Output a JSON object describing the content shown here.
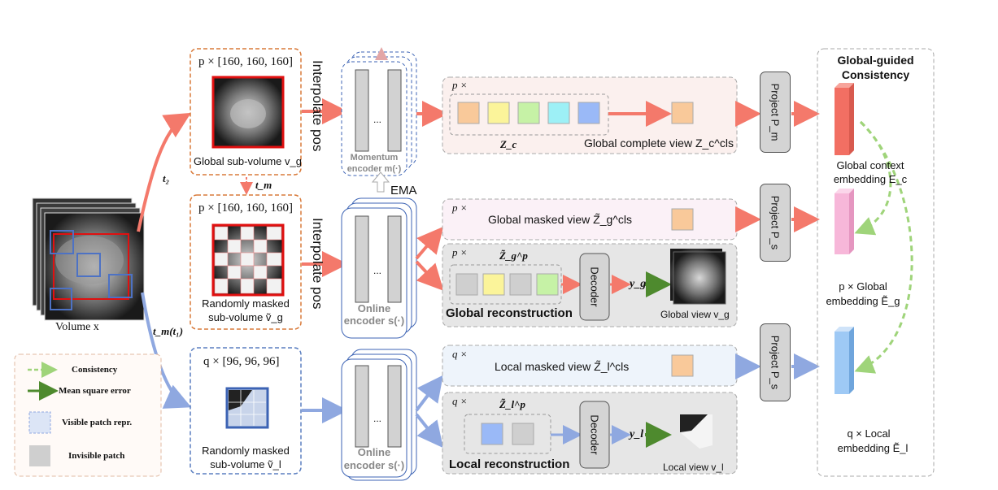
{
  "volume": {
    "label": "Volume x"
  },
  "branches": {
    "t2": "t₂",
    "tm": "t_m",
    "tm_t1": "t_m(t₁)"
  },
  "global_subvolume": {
    "size": "p × [160, 160, 160]",
    "caption": "Global sub-volume v_g"
  },
  "masked_global_subvolume": {
    "size": "p × [160, 160, 160]",
    "caption_line1": "Randomly masked",
    "caption_line2": "sub-volume ṽ_g"
  },
  "local_subvolume": {
    "size": "q × [96, 96, 96]",
    "caption_line1": "Randomly masked",
    "caption_line2": "sub-volume ṽ_l"
  },
  "interpolate": {
    "top": "Interpolate pos",
    "mid": "Interpolate pos"
  },
  "encoders": {
    "momentum_line1": "Momentum",
    "momentum_line2": "encoder m(·)",
    "online_line1": "Online",
    "online_line2": "encoder s(·)",
    "online2_line1": "Online",
    "online2_line2": "encoder s(·)",
    "ellipsis": "...",
    "ema": "EMA"
  },
  "global_complete": {
    "prefix": "p ×",
    "token_label": "Z_c",
    "view_label": "Global complete view Z_c^cls"
  },
  "global_masked": {
    "prefix": "p ×",
    "view_label": "Global masked view Z̃_g^cls"
  },
  "global_recon": {
    "prefix": "p ×",
    "token_label": "Z̃_g^p",
    "decoder": "Decoder",
    "output": "y_g",
    "title": "Global reconstruction",
    "view": "Global view v_g"
  },
  "local_masked": {
    "prefix": "q ×",
    "view_label": "Local masked view Z̃_l^cls"
  },
  "local_recon": {
    "prefix": "q ×",
    "token_label": "Z̃_l^p",
    "decoder": "Decoder",
    "output": "y_l",
    "title": "Local reconstruction",
    "view": "Local view v_l"
  },
  "projections": {
    "pm": "Project P_m",
    "ps1": "Project P_s",
    "ps2": "Project P_s"
  },
  "consistency": {
    "title_line1": "Global-guided",
    "title_line2": "Consistency",
    "global_context_line1": "Global context",
    "global_context_line2": "embedding E_c",
    "global_emb_line1": "p × Global",
    "global_emb_line2": "embedding Ẽ_g",
    "local_emb_line1": "q × Local",
    "local_emb_line2": "embedding Ẽ_l"
  },
  "legend": {
    "consistency": "Consistency",
    "mse": "Mean square error",
    "visible": "Visible patch repr.",
    "invisible": "Invisible patch"
  },
  "colors": {
    "red_arrow": "#f4796b",
    "blue_arrow": "#8fa8e0",
    "green_dashed": "#9fd47a",
    "green_arrow": "#4e8a2e",
    "orange_dashed_box": "#d97a3a",
    "blue_dashed_box": "#5b7fc0",
    "token_orange": "#f9c99a",
    "token_yellow": "#fbf49a",
    "token_green": "#c6f2a6",
    "token_cyan": "#9df0f6",
    "token_blue": "#9ab9f7",
    "token_gray": "#cfcfcf",
    "emb_red": "#f26f63",
    "emb_pink": "#f7b7d9",
    "emb_blue": "#9ec9f5"
  }
}
